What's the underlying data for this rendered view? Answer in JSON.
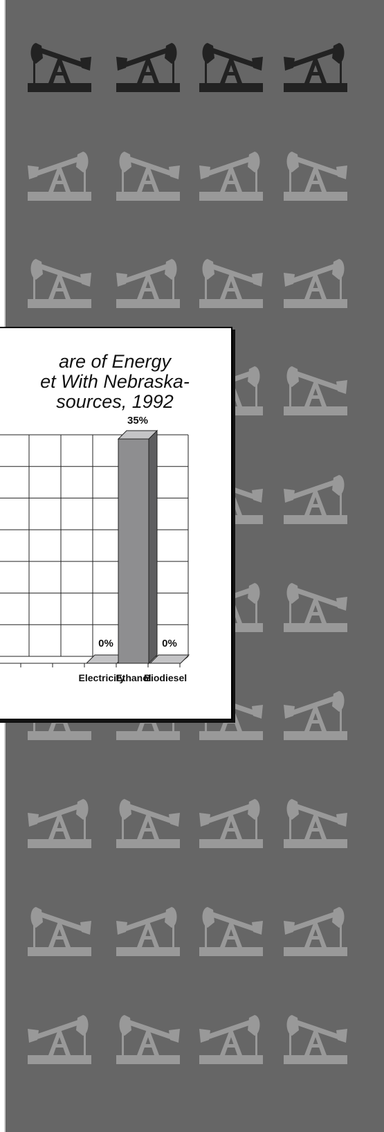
{
  "colors": {
    "panel_bg": "#666666",
    "icon_dark": "#222222",
    "icon_light": "#999999",
    "bar_front": "#8e8e90",
    "bar_side": "#5e5e60",
    "bar_top": "#c4c4c6"
  },
  "icons": {
    "name": "oil-pump-jack-icon",
    "columns": 4,
    "rows": 10,
    "dark_rows": 1
  },
  "chart_data": {
    "type": "bar",
    "title_lines": [
      "are of Energy",
      "et With Nebraska-",
      "sources, 1992"
    ],
    "categories": [
      "Electricity",
      "Ethanol",
      "Biodiesel"
    ],
    "values": [
      0,
      35,
      0
    ],
    "data_labels": [
      "0%",
      "35%",
      "0%"
    ],
    "ylim": [
      0,
      35
    ],
    "grid": true,
    "three_d": true
  }
}
